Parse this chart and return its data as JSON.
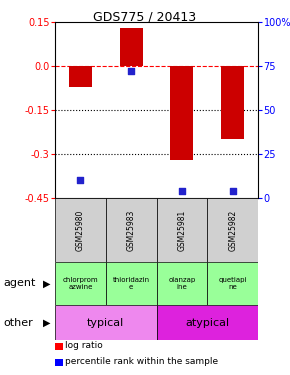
{
  "title": "GDS775 / 20413",
  "samples": [
    "GSM25980",
    "GSM25983",
    "GSM25981",
    "GSM25982"
  ],
  "log_ratios": [
    -0.07,
    0.13,
    -0.32,
    -0.25
  ],
  "percentile_ranks": [
    10,
    72,
    4,
    4
  ],
  "ylim_left": [
    -0.45,
    0.15
  ],
  "ylim_right": [
    0,
    100
  ],
  "yticks_left": [
    0.15,
    0.0,
    -0.15,
    -0.3,
    -0.45
  ],
  "yticks_right": [
    100,
    75,
    50,
    25,
    0
  ],
  "hlines": [
    -0.15,
    -0.3
  ],
  "dashed_hline": 0.0,
  "bar_color": "#cc0000",
  "dot_color": "#2222cc",
  "agent_labels": [
    "chlorprom\nazwine",
    "thioridazin\ne",
    "olanzap\nine",
    "quetiapi\nne"
  ],
  "agent_color": "#99ff99",
  "typical_color": "#ee88ee",
  "atypical_color": "#dd22dd",
  "typical_label": "typical",
  "atypical_label": "atypical",
  "legend_red": "log ratio",
  "legend_blue": "percentile rank within the sample",
  "bar_width": 0.45
}
